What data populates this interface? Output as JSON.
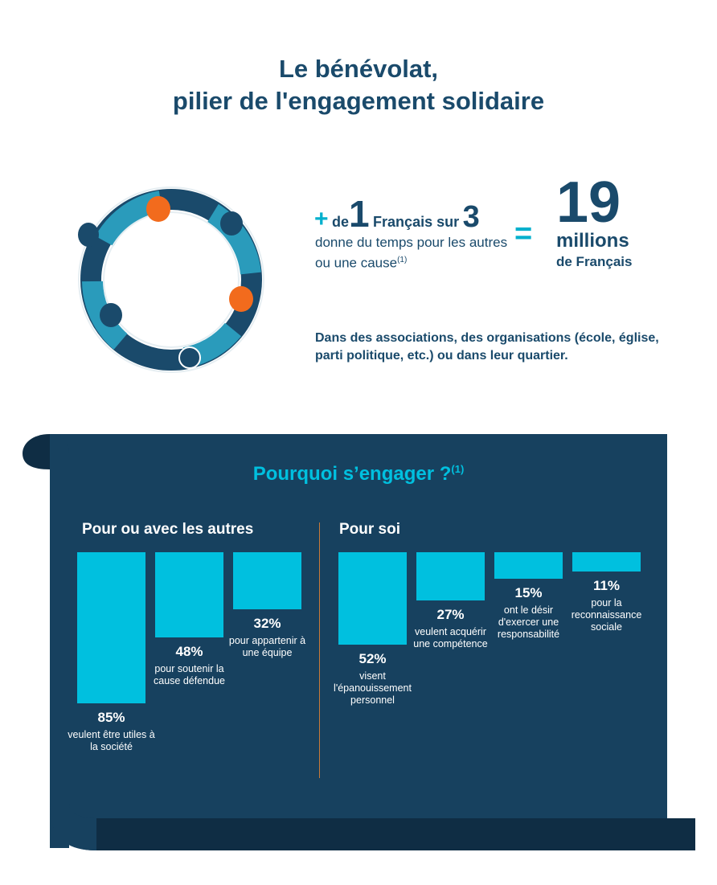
{
  "title": {
    "line1": "Le bénévolat,",
    "line2": "pilier de l'engagement solidaire"
  },
  "headline": {
    "plus": "+",
    "de": "de",
    "one": "1",
    "francais_sur": "Français sur",
    "three": "3",
    "line2": "donne du temps pour les autres ou une cause",
    "footnote": "(1)",
    "equals": "=",
    "big_number": "19",
    "millions": "millions",
    "de_francais": "de Français"
  },
  "note": "Dans des associations, des organisations (école, église, parti politique, etc.) ou dans leur quartier.",
  "colors": {
    "navy": "#1a4a6b",
    "panel": "#17415f",
    "accent_cyan": "#00c0df",
    "accent_orange": "#f26b1d"
  },
  "chart_data": {
    "type": "bar",
    "title": "Pourquoi s’engager ?",
    "title_footnote": "(1)",
    "unit": "%",
    "ylim": [
      0,
      100
    ],
    "groups": [
      {
        "name": "Pour ou avec les autres",
        "bars": [
          {
            "value": 85,
            "label": "85%",
            "description": "veulent être utiles à la société"
          },
          {
            "value": 48,
            "label": "48%",
            "description": "pour soutenir la cause défendue"
          },
          {
            "value": 32,
            "label": "32%",
            "description": "pour appartenir à une équipe"
          }
        ]
      },
      {
        "name": "Pour soi",
        "bars": [
          {
            "value": 52,
            "label": "52%",
            "description": "visent l'épanouissement personnel"
          },
          {
            "value": 27,
            "label": "27%",
            "description": "veulent acquérir une compétence"
          },
          {
            "value": 15,
            "label": "15%",
            "description": "ont le désir d'exercer une responsabilité"
          },
          {
            "value": 11,
            "label": "11%",
            "description": "pour la reconnaissance sociale"
          }
        ]
      }
    ]
  }
}
